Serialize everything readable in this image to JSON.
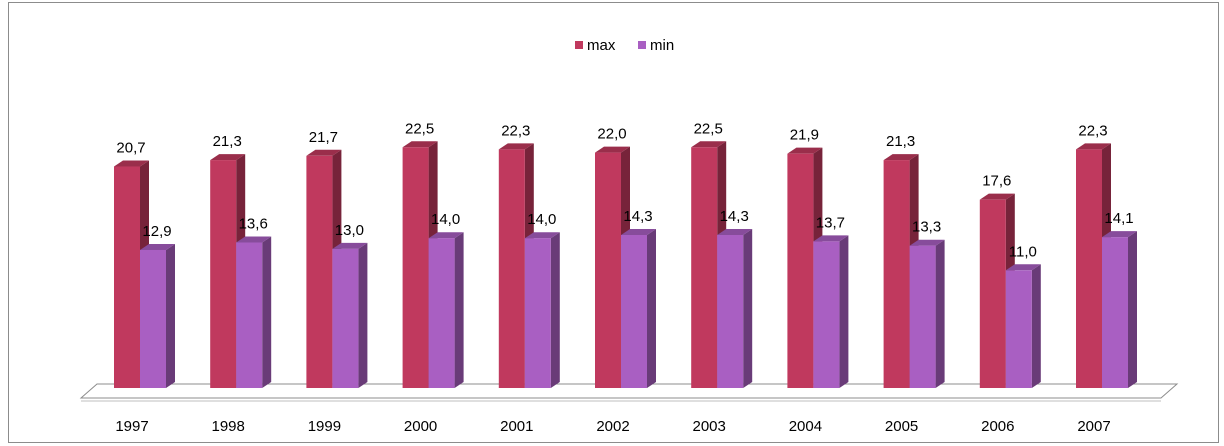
{
  "chart_data": {
    "type": "bar",
    "categories": [
      "1997",
      "1998",
      "1999",
      "2000",
      "2001",
      "2002",
      "2003",
      "2004",
      "2005",
      "2006",
      "2007"
    ],
    "series": [
      {
        "name": "max",
        "color": "#c0395e",
        "values": [
          20.7,
          21.3,
          21.7,
          22.5,
          22.3,
          22.0,
          22.5,
          21.9,
          21.3,
          17.6,
          22.3
        ],
        "labels": [
          "20,7",
          "21,3",
          "21,7",
          "22,5",
          "22,3",
          "22,0",
          "22,5",
          "21,9",
          "21,3",
          "17,6",
          "22,3"
        ]
      },
      {
        "name": "min",
        "color": "#a95fc2",
        "values": [
          12.9,
          13.6,
          13.0,
          14.0,
          14.0,
          14.3,
          14.3,
          13.7,
          13.3,
          11.0,
          14.1
        ],
        "labels": [
          "12,9",
          "13,6",
          "13,0",
          "14,0",
          "14,0",
          "14,3",
          "14,3",
          "13,7",
          "13,3",
          "11,0",
          "14,1"
        ]
      }
    ],
    "title": "",
    "xlabel": "",
    "ylabel": "",
    "ylim": [
      0,
      24
    ],
    "grid": false,
    "legend": "top-center",
    "style": "3d-column"
  }
}
